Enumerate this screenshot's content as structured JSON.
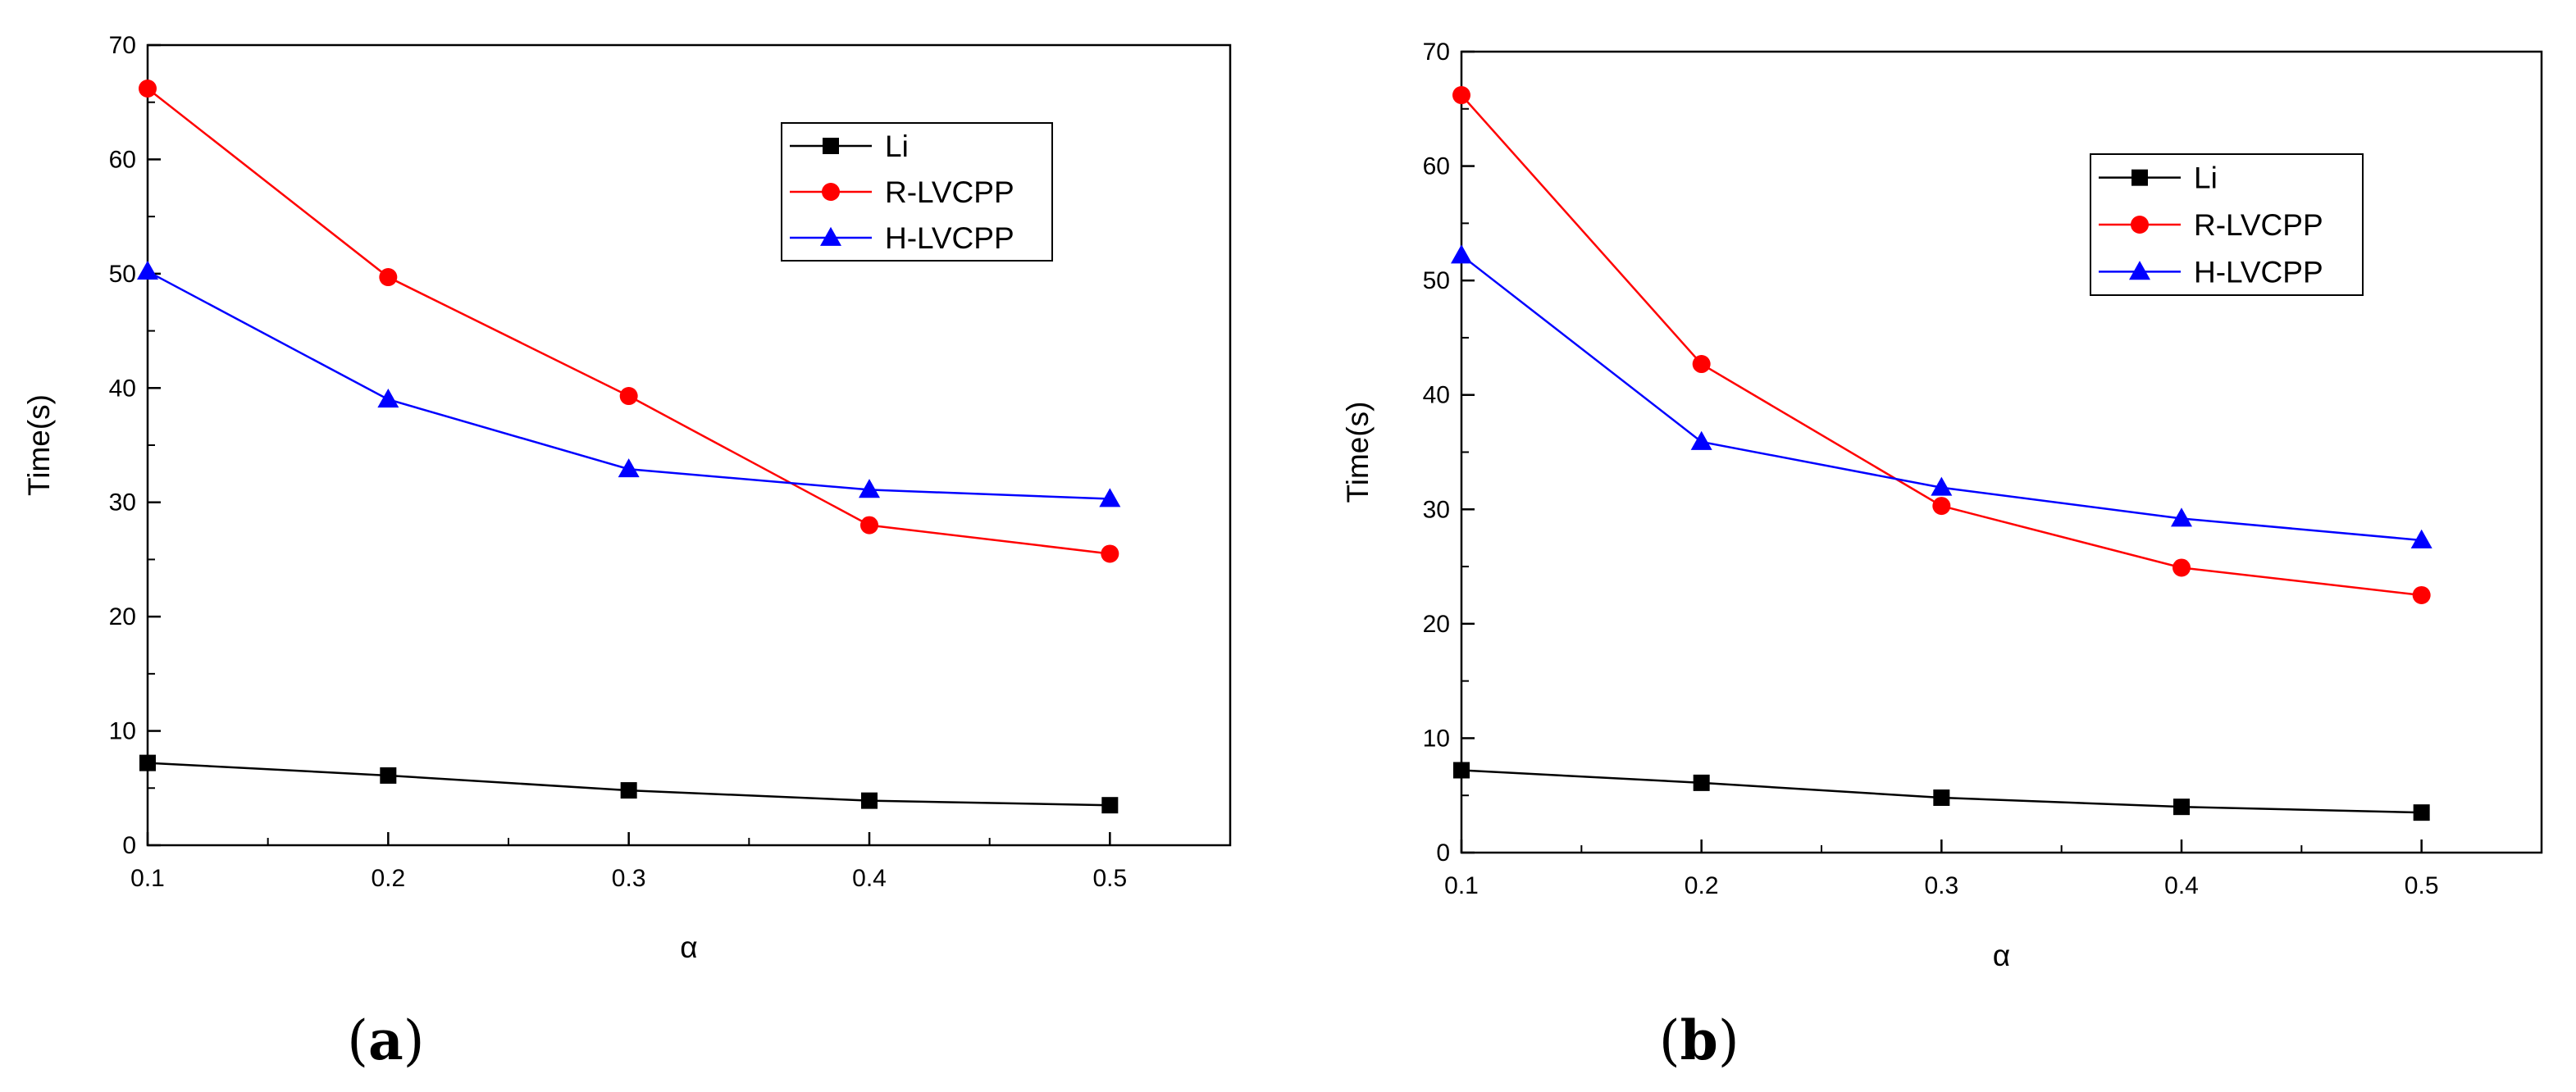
{
  "chart_data": [
    {
      "type": "line",
      "panel_label": "(a)",
      "panel_letter": "a",
      "xlabel": "α",
      "ylabel": "Time(s)",
      "xlim": [
        0.1,
        0.55
      ],
      "ylim": [
        0,
        70
      ],
      "x_ticks": [
        0.1,
        0.2,
        0.3,
        0.4,
        0.5
      ],
      "y_ticks": [
        0,
        10,
        20,
        30,
        40,
        50,
        60,
        70
      ],
      "x_tick_labels": [
        "0.1",
        "0.2",
        "0.3",
        "0.4",
        "0.5"
      ],
      "y_tick_labels": [
        "0",
        "10",
        "20",
        "30",
        "40",
        "50",
        "60",
        "70"
      ],
      "legend_position": "top-right",
      "x": [
        0.1,
        0.2,
        0.3,
        0.4,
        0.5
      ],
      "series": [
        {
          "name": "Li",
          "color": "#000000",
          "marker": "square",
          "values": [
            7.2,
            6.1,
            4.8,
            3.9,
            3.5
          ]
        },
        {
          "name": "R-LVCPP",
          "color": "#ff0000",
          "marker": "circle",
          "values": [
            66.2,
            49.7,
            39.3,
            28.0,
            25.5
          ]
        },
        {
          "name": "H-LVCPP",
          "color": "#0000ff",
          "marker": "triangle",
          "values": [
            50.2,
            39.0,
            32.9,
            31.1,
            30.3
          ]
        }
      ]
    },
    {
      "type": "line",
      "panel_label": "(b)",
      "panel_letter": "b",
      "xlabel": "α",
      "ylabel": "Time(s)",
      "xlim": [
        0.1,
        0.55
      ],
      "ylim": [
        0,
        70
      ],
      "x_ticks": [
        0.1,
        0.2,
        0.3,
        0.4,
        0.5
      ],
      "y_ticks": [
        0,
        10,
        20,
        30,
        40,
        50,
        60,
        70
      ],
      "x_tick_labels": [
        "0.1",
        "0.2",
        "0.3",
        "0.4",
        "0.5"
      ],
      "y_tick_labels": [
        "0",
        "10",
        "20",
        "30",
        "40",
        "50",
        "60",
        "70"
      ],
      "legend_position": "top-right",
      "x": [
        0.1,
        0.2,
        0.3,
        0.4,
        0.5
      ],
      "series": [
        {
          "name": "Li",
          "color": "#000000",
          "marker": "square",
          "values": [
            7.2,
            6.1,
            4.8,
            4.0,
            3.5
          ]
        },
        {
          "name": "R-LVCPP",
          "color": "#ff0000",
          "marker": "circle",
          "values": [
            66.2,
            42.7,
            30.3,
            24.9,
            22.5
          ]
        },
        {
          "name": "H-LVCPP",
          "color": "#0000ff",
          "marker": "triangle",
          "values": [
            52.2,
            35.9,
            31.9,
            29.2,
            27.3
          ]
        }
      ]
    }
  ]
}
